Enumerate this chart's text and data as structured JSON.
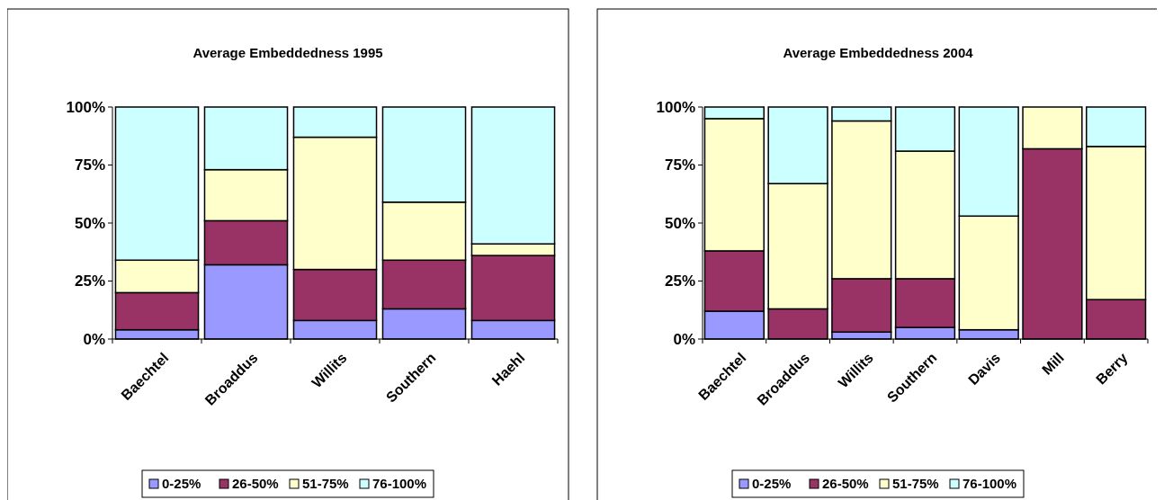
{
  "chart_data": [
    {
      "type": "bar",
      "title": "Average Embeddedness 1995",
      "stacked": true,
      "categories": [
        "Baechtel",
        "Broaddus",
        "Willits",
        "Southern",
        "Haehl"
      ],
      "series": [
        {
          "name": "0-25%",
          "color": "#9999ff",
          "values": [
            4,
            32,
            8,
            13,
            8
          ]
        },
        {
          "name": "26-50%",
          "color": "#993366",
          "values": [
            16,
            19,
            22,
            21,
            28
          ]
        },
        {
          "name": "51-75%",
          "color": "#ffffcc",
          "values": [
            14,
            22,
            57,
            25,
            5
          ]
        },
        {
          "name": "76-100%",
          "color": "#ccffff",
          "values": [
            66,
            27,
            13,
            41,
            59
          ]
        }
      ],
      "ylim": [
        0,
        100
      ],
      "yticks": [
        {
          "value": 0,
          "label": "0%"
        },
        {
          "value": 25,
          "label": "25%"
        },
        {
          "value": 50,
          "label": "50%"
        },
        {
          "value": 75,
          "label": "75%"
        },
        {
          "value": 100,
          "label": "100%"
        }
      ],
      "legend": "bottom",
      "grid": false
    },
    {
      "type": "bar",
      "title": "Average Embeddedness 2004",
      "stacked": true,
      "categories": [
        "Baechtel",
        "Broaddus",
        "Willits",
        "Southern",
        "Davis",
        "Mill",
        "Berry"
      ],
      "series": [
        {
          "name": "0-25%",
          "color": "#9999ff",
          "values": [
            12,
            0,
            3,
            5,
            4,
            0,
            0
          ]
        },
        {
          "name": "26-50%",
          "color": "#993366",
          "values": [
            26,
            13,
            23,
            21,
            0,
            82,
            17
          ]
        },
        {
          "name": "51-75%",
          "color": "#ffffcc",
          "values": [
            57,
            54,
            68,
            55,
            49,
            18,
            66
          ]
        },
        {
          "name": "76-100%",
          "color": "#ccffff",
          "values": [
            5,
            33,
            6,
            19,
            47,
            0,
            17
          ]
        }
      ],
      "ylim": [
        0,
        100
      ],
      "yticks": [
        {
          "value": 0,
          "label": "0%"
        },
        {
          "value": 25,
          "label": "25%"
        },
        {
          "value": 50,
          "label": "50%"
        },
        {
          "value": 75,
          "label": "75%"
        },
        {
          "value": 100,
          "label": "100%"
        }
      ],
      "legend": "bottom",
      "grid": false
    }
  ]
}
